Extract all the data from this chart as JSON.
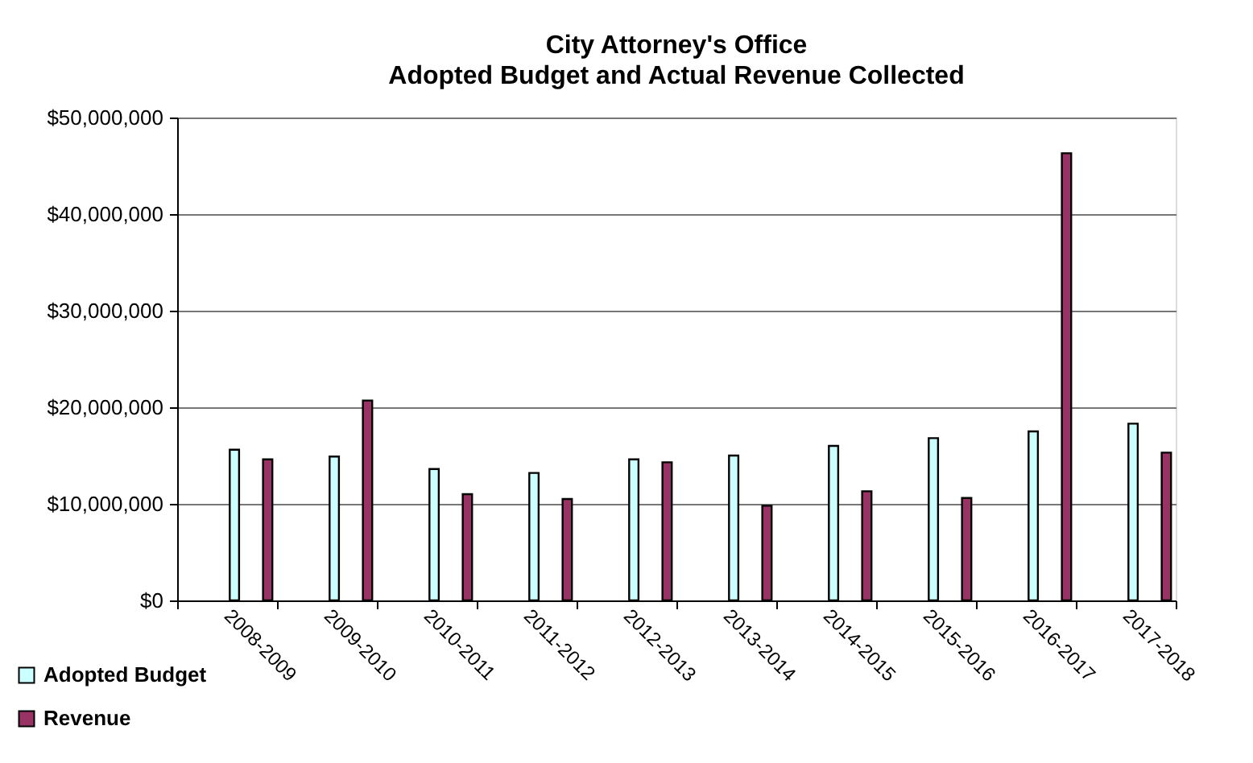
{
  "chart_data": {
    "type": "bar",
    "title": "City Attorney's Office",
    "subtitle": "Adopted Budget and Actual Revenue Collected",
    "categories": [
      "2008-2009",
      "2009-2010",
      "2010-2011",
      "2011-2012",
      "2012-2013",
      "2013-2014",
      "2014-2015",
      "2015-2016",
      "2016-2017",
      "2017-2018"
    ],
    "series": [
      {
        "name": "Adopted Budget",
        "color": "#ccffff",
        "values": [
          15600000,
          14900000,
          13600000,
          13200000,
          14600000,
          15000000,
          16000000,
          16800000,
          17500000,
          18300000
        ]
      },
      {
        "name": "Revenue",
        "color": "#993366",
        "values": [
          14600000,
          20700000,
          11000000,
          10500000,
          14300000,
          9800000,
          11300000,
          10600000,
          46300000,
          15300000
        ]
      }
    ],
    "ylim": [
      0,
      50000000
    ],
    "yticks": [
      {
        "value": 0,
        "label": "$0"
      },
      {
        "value": 10000000,
        "label": "$10,000,000"
      },
      {
        "value": 20000000,
        "label": "$20,000,000"
      },
      {
        "value": 30000000,
        "label": "$30,000,000"
      },
      {
        "value": 40000000,
        "label": "$40,000,000"
      },
      {
        "value": 50000000,
        "label": "$50,000,000"
      }
    ],
    "grid": "y",
    "legend": "bottom left"
  }
}
